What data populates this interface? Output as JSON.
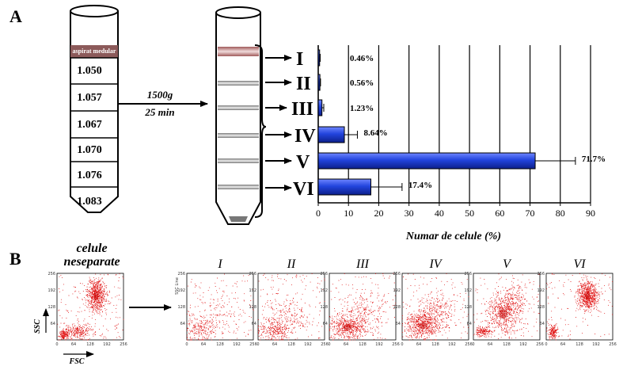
{
  "panel_a": {
    "letter": "A",
    "tube1_labels": [
      "aspirat medular",
      "1.050",
      "1.057",
      "1.067",
      "1.070",
      "1.076",
      "1.083"
    ],
    "centrifugation": {
      "force": "1500g",
      "time": "25 min"
    },
    "fraction_labels": [
      "I",
      "II",
      "III",
      "IV",
      "V",
      "VI"
    ]
  },
  "panel_b": {
    "letter": "B",
    "unsorted_title_line1": "celule",
    "unsorted_title_line2": "neseparate",
    "fraction_titles": [
      "I",
      "II",
      "III",
      "IV",
      "V",
      "VI"
    ],
    "y_axis": "SSC",
    "x_axis": "FSC",
    "tick_labels": [
      "0",
      "64",
      "128",
      "192",
      "256"
    ],
    "inner_y_label": "SSC Line"
  },
  "chart_data": {
    "type": "bar",
    "orientation": "horizontal",
    "categories": [
      "I",
      "II",
      "III",
      "IV",
      "V",
      "VI"
    ],
    "values": [
      0.46,
      0.56,
      1.23,
      8.64,
      71.7,
      17.4
    ],
    "errors": [
      0.2,
      0.2,
      0.6,
      4.3,
      13.3,
      10.3
    ],
    "value_labels": [
      "0.46%",
      "0.56%",
      "1.23%",
      "8.64%",
      "71.7%",
      "17.4%"
    ],
    "xlabel": "Numar de celule (%)",
    "xlim": [
      0,
      90
    ],
    "xticks": [
      "0",
      "10",
      "20",
      "30",
      "40",
      "50",
      "60",
      "70",
      "80",
      "90"
    ],
    "grid": true,
    "bar_color": "#2244dd"
  }
}
